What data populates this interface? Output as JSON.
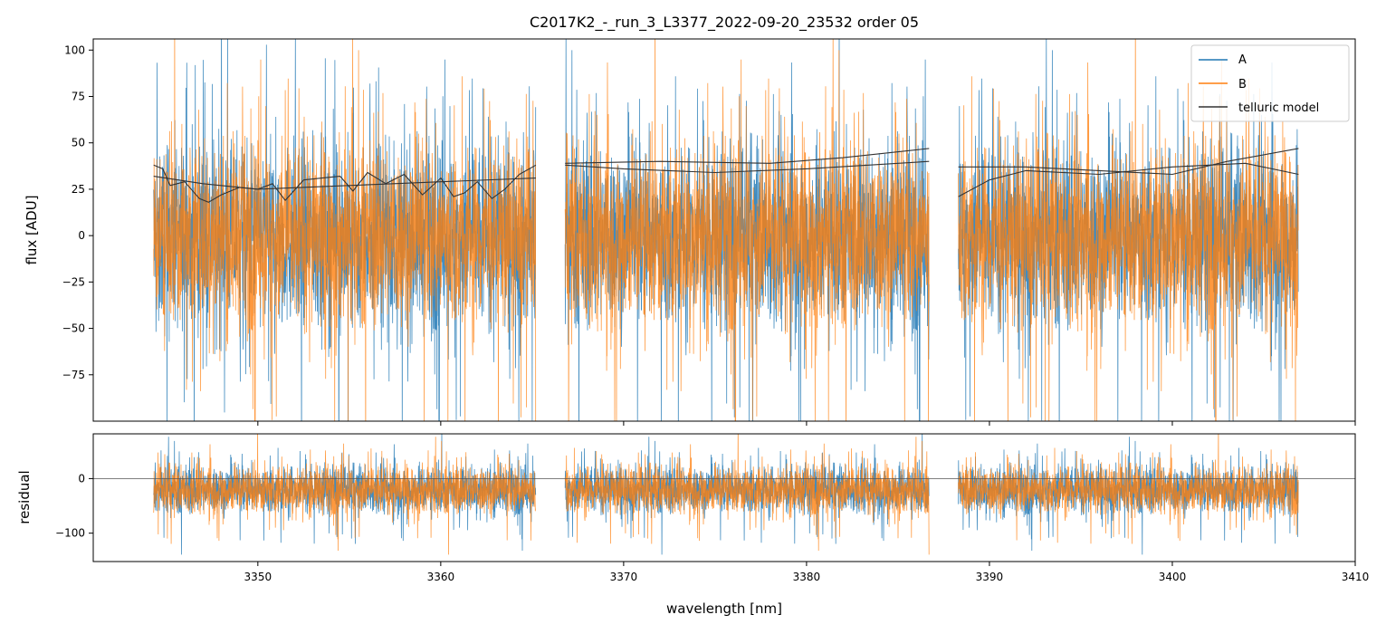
{
  "chart_data": [
    {
      "type": "line",
      "panel": "top",
      "title": "C2017K2_-_run_3_L3377_2022-09-20_23532  order 05",
      "xlabel": "",
      "ylabel": "flux [ADU]",
      "xlim": [
        3341,
        3410
      ],
      "ylim": [
        -100,
        106
      ],
      "yticks": [
        -75,
        -50,
        -25,
        0,
        25,
        50,
        75,
        100
      ],
      "ytick_labels": [
        "−75",
        "−50",
        "−25",
        "0",
        "25",
        "50",
        "75",
        "100"
      ],
      "legend": {
        "placement": "top-right",
        "entries": [
          {
            "label": "A",
            "color": "#1f77b4"
          },
          {
            "label": "B",
            "color": "#ff7f0e"
          },
          {
            "label": "telluric model",
            "color": "#333333"
          }
        ]
      },
      "segments": [
        {
          "x_range": [
            3344.3,
            3365.2
          ]
        },
        {
          "x_range": [
            3366.8,
            3386.7
          ]
        },
        {
          "x_range": [
            3388.3,
            3406.9
          ]
        }
      ],
      "series": [
        {
          "name": "A",
          "color": "#1f77b4",
          "noise_center": 0,
          "noise_spread": 45
        },
        {
          "name": "B",
          "color": "#ff7f0e",
          "noise_center": 0,
          "noise_spread": 45
        },
        {
          "name": "telluric model",
          "color": "#333333",
          "curves": [
            {
              "x": [
                3344.3,
                3344.8,
                3345.2,
                3346.0,
                3346.8,
                3347.3,
                3348.0,
                3349.0,
                3350.0,
                3350.8,
                3351.5,
                3352.5,
                3353.5,
                3354.5,
                3355.2,
                3356.0,
                3357.0,
                3358.0,
                3359.0,
                3360.0,
                3360.7,
                3361.3,
                3362.0,
                3362.8,
                3363.5,
                3364.3,
                3365.2
              ],
              "y": [
                38,
                36,
                27,
                29,
                20,
                18,
                22,
                26,
                25,
                28,
                19,
                30,
                31,
                32,
                24,
                34,
                28,
                33,
                22,
                31,
                21,
                23,
                29,
                20,
                25,
                33,
                38
              ]
            },
            {
              "x": [
                3344.3,
                3347,
                3350,
                3355,
                3360,
                3365.2
              ],
              "y": [
                32,
                28,
                25,
                27,
                29,
                31
              ]
            },
            {
              "x": [
                3366.8,
                3370,
                3375,
                3380,
                3386.7
              ],
              "y": [
                38,
                36,
                34,
                36,
                40
              ]
            },
            {
              "x": [
                3366.8,
                3372,
                3378,
                3382,
                3386.7
              ],
              "y": [
                39,
                40,
                39,
                42,
                47
              ]
            },
            {
              "x": [
                3388.3,
                3390,
                3392,
                3396,
                3400,
                3404,
                3406.9
              ],
              "y": [
                21,
                30,
                35,
                33,
                37,
                39,
                33
              ]
            },
            {
              "x": [
                3388.3,
                3392,
                3396,
                3400,
                3403,
                3406.9
              ],
              "y": [
                37,
                37,
                35,
                33,
                40,
                47
              ]
            }
          ]
        }
      ]
    },
    {
      "type": "line",
      "panel": "bottom",
      "xlabel": "wavelength [nm]",
      "ylabel": "residual",
      "xlim": [
        3341,
        3410
      ],
      "ylim": [
        -152,
        82
      ],
      "xticks": [
        3350,
        3360,
        3370,
        3380,
        3390,
        3400,
        3410
      ],
      "xtick_labels": [
        "3350",
        "3360",
        "3370",
        "3380",
        "3390",
        "3400",
        "3410"
      ],
      "yticks": [
        -100,
        0
      ],
      "ytick_labels": [
        "−100",
        "0"
      ],
      "reference_line": 0,
      "series": [
        {
          "name": "A",
          "color": "#1f77b4",
          "noise_center": -20,
          "noise_spread": 40
        },
        {
          "name": "B",
          "color": "#ff7f0e",
          "noise_center": -20,
          "noise_spread": 40
        }
      ]
    }
  ]
}
